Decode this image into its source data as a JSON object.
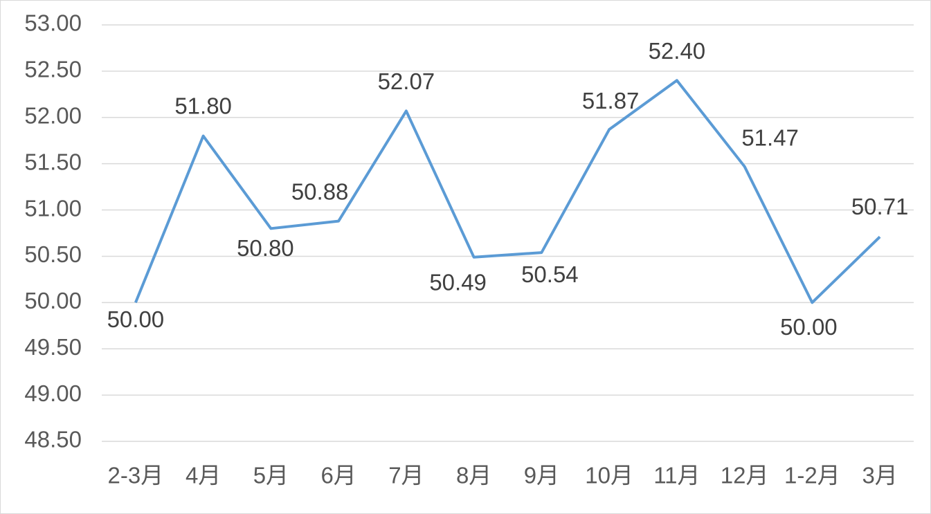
{
  "chart_data": {
    "type": "line",
    "categories": [
      "2-3月",
      "4月",
      "5月",
      "6月",
      "7月",
      "8月",
      "9月",
      "10月",
      "11月",
      "12月",
      "1-2月",
      "3月"
    ],
    "series": [
      {
        "color": "#5b9bd5",
        "values": [
          50.0,
          51.8,
          50.8,
          50.88,
          52.07,
          50.49,
          50.54,
          51.87,
          52.4,
          51.47,
          50.0,
          50.71
        ],
        "value_labels": [
          "50.00",
          "51.80",
          "50.80",
          "50.88",
          "52.07",
          "50.49",
          "50.54",
          "51.87",
          "52.40",
          "51.47",
          "50.00",
          "50.71"
        ]
      }
    ],
    "ylim": [
      48.5,
      53
    ],
    "yticks": [
      {
        "value": 48.5,
        "label": "48.50"
      },
      {
        "value": 49,
        "label": "49.00"
      },
      {
        "value": 49.5,
        "label": "49.50"
      },
      {
        "value": 50,
        "label": "50.00"
      },
      {
        "value": 50.5,
        "label": "50.50"
      },
      {
        "value": 51,
        "label": "51.00"
      },
      {
        "value": 51.5,
        "label": "51.50"
      },
      {
        "value": 52,
        "label": "52.00"
      },
      {
        "value": 52.5,
        "label": "52.50"
      },
      {
        "value": 53,
        "label": "53.00"
      }
    ],
    "grid": true
  }
}
